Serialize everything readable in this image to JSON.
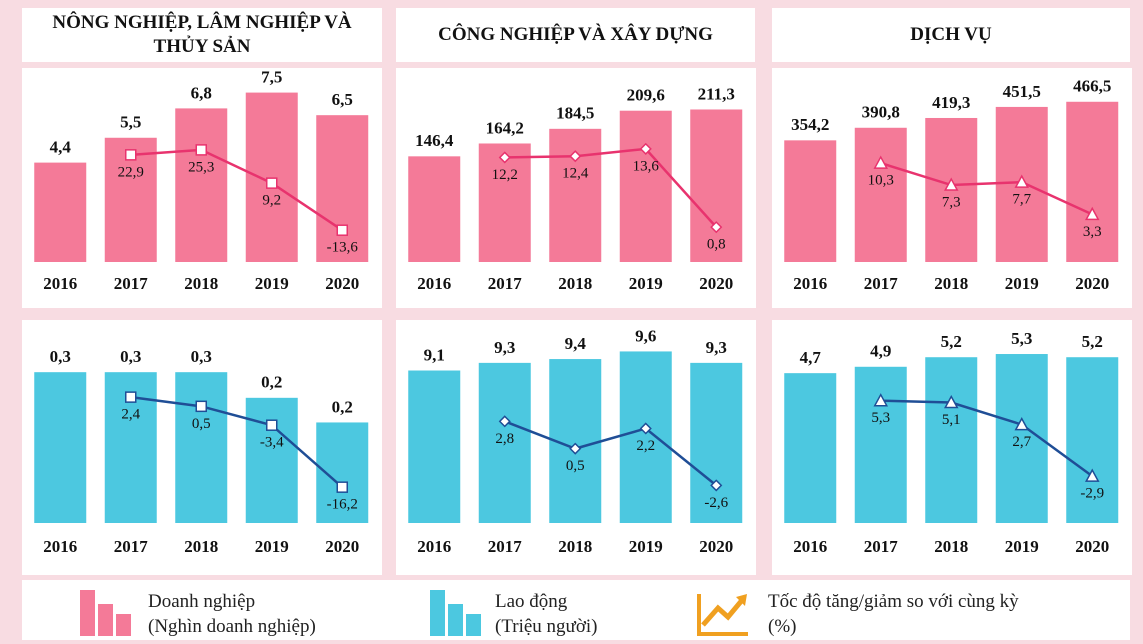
{
  "chart_data": [
    {
      "type": "bar",
      "title": "NÔNG NGHIỆP, LÂM NGHIỆP VÀ THỦY SẢN",
      "categories": [
        "2016",
        "2017",
        "2018",
        "2019",
        "2020"
      ],
      "series": [
        {
          "color": "#f47a98",
          "values": [
            4.4,
            5.5,
            6.8,
            7.5,
            6.5
          ],
          "value_labels": [
            "4,4",
            "5,5",
            "6,8",
            "7,5",
            "6,5"
          ]
        },
        {
          "type": "line",
          "axis": "y2",
          "color": "#e8336e",
          "marker": "square",
          "values": [
            null,
            22.9,
            25.3,
            9.2,
            -13.6
          ],
          "value_labels": [
            null,
            "22,9",
            "25,3",
            "9,2",
            "-13,6"
          ]
        }
      ],
      "ylim": [
        0,
        8.5
      ],
      "y2lim": [
        -29,
        64
      ]
    },
    {
      "type": "bar",
      "title": "CÔNG NGHIỆP VÀ XÂY DỰNG",
      "categories": [
        "2016",
        "2017",
        "2018",
        "2019",
        "2020"
      ],
      "series": [
        {
          "color": "#f47a98",
          "values": [
            146.4,
            164.2,
            184.5,
            209.6,
            211.3
          ],
          "value_labels": [
            "146,4",
            "164,2",
            "184,5",
            "209,6",
            "211,3"
          ]
        },
        {
          "type": "line",
          "axis": "y2",
          "color": "#e8336e",
          "marker": "diamond",
          "values": [
            null,
            12.2,
            12.4,
            13.6,
            0.8
          ],
          "value_labels": [
            null,
            "12,2",
            "12,4",
            "13,6",
            "0,8"
          ]
        }
      ],
      "ylim": [
        0,
        266
      ],
      "y2lim": [
        -4.9,
        26.5
      ]
    },
    {
      "type": "bar",
      "title": "DỊCH VỤ",
      "categories": [
        "2016",
        "2017",
        "2018",
        "2019",
        "2020"
      ],
      "series": [
        {
          "color": "#f47a98",
          "values": [
            354.2,
            390.8,
            419.3,
            451.5,
            466.5
          ],
          "value_labels": [
            "354,2",
            "390,8",
            "419,3",
            "451,5",
            "466,5"
          ]
        },
        {
          "type": "line",
          "axis": "y2",
          "color": "#e8336e",
          "marker": "triangle",
          "values": [
            null,
            10.3,
            7.3,
            7.7,
            3.3
          ],
          "value_labels": [
            null,
            "10,3",
            "7,3",
            "7,7",
            "3,3"
          ]
        }
      ],
      "ylim": [
        0,
        559
      ],
      "y2lim": [
        -3.2,
        23
      ]
    },
    {
      "type": "bar",
      "categories": [
        "2016",
        "2017",
        "2018",
        "2019",
        "2020"
      ],
      "series": [
        {
          "color": "#4cc8e0",
          "values": [
            0.3,
            0.3,
            0.3,
            0.249,
            0.2
          ],
          "value_labels": [
            "0,3",
            "0,3",
            "0,3",
            "0,2",
            "0,2"
          ]
        },
        {
          "type": "line",
          "axis": "y2",
          "color": "#1f4e96",
          "marker": "square",
          "values": [
            null,
            2.4,
            0.5,
            -3.4,
            -16.2
          ],
          "value_labels": [
            null,
            "2,4",
            "0,5",
            "-3,4",
            "-16,2"
          ]
        }
      ],
      "ylim": [
        0,
        0.364
      ],
      "y2lim": [
        -23.6,
        14.2
      ]
    },
    {
      "type": "bar",
      "categories": [
        "2016",
        "2017",
        "2018",
        "2019",
        "2020"
      ],
      "series": [
        {
          "color": "#4cc8e0",
          "values": [
            9.1,
            9.3,
            9.4,
            9.6,
            9.3
          ],
          "value_labels": [
            "9,1",
            "9,3",
            "9,4",
            "9,6",
            "9,3"
          ]
        },
        {
          "type": "line",
          "axis": "y2",
          "color": "#1f4e96",
          "marker": "diamond",
          "values": [
            null,
            2.8,
            0.5,
            2.2,
            -2.6
          ],
          "value_labels": [
            null,
            "2,8",
            "0,5",
            "2,2",
            "-2,6"
          ]
        }
      ],
      "ylim": [
        5.1,
        9.9
      ],
      "y2lim": [
        -5.77,
        9.66
      ]
    },
    {
      "type": "bar",
      "categories": [
        "2016",
        "2017",
        "2018",
        "2019",
        "2020"
      ],
      "series": [
        {
          "color": "#4cc8e0",
          "values": [
            4.7,
            4.9,
            5.2,
            5.3,
            5.2
          ],
          "value_labels": [
            "4,7",
            "4,9",
            "5,2",
            "5,3",
            "5,2"
          ]
        },
        {
          "type": "line",
          "axis": "y2",
          "color": "#1f4e96",
          "marker": "triangle",
          "values": [
            null,
            5.3,
            5.1,
            2.7,
            -2.9
          ],
          "value_labels": [
            null,
            "5,3",
            "5,1",
            "2,7",
            "-2,9"
          ]
        }
      ],
      "ylim": [
        0,
        5.74
      ],
      "y2lim": [
        -8,
        11.9
      ]
    }
  ],
  "legend": [
    {
      "label": "Doanh nghiệp",
      "unit": "(Nghìn doanh nghiệp)"
    },
    {
      "label": "Lao động",
      "unit": "(Triệu người)"
    },
    {
      "label": "Tốc độ tăng/giảm so với cùng kỳ",
      "unit": "(%)"
    }
  ]
}
